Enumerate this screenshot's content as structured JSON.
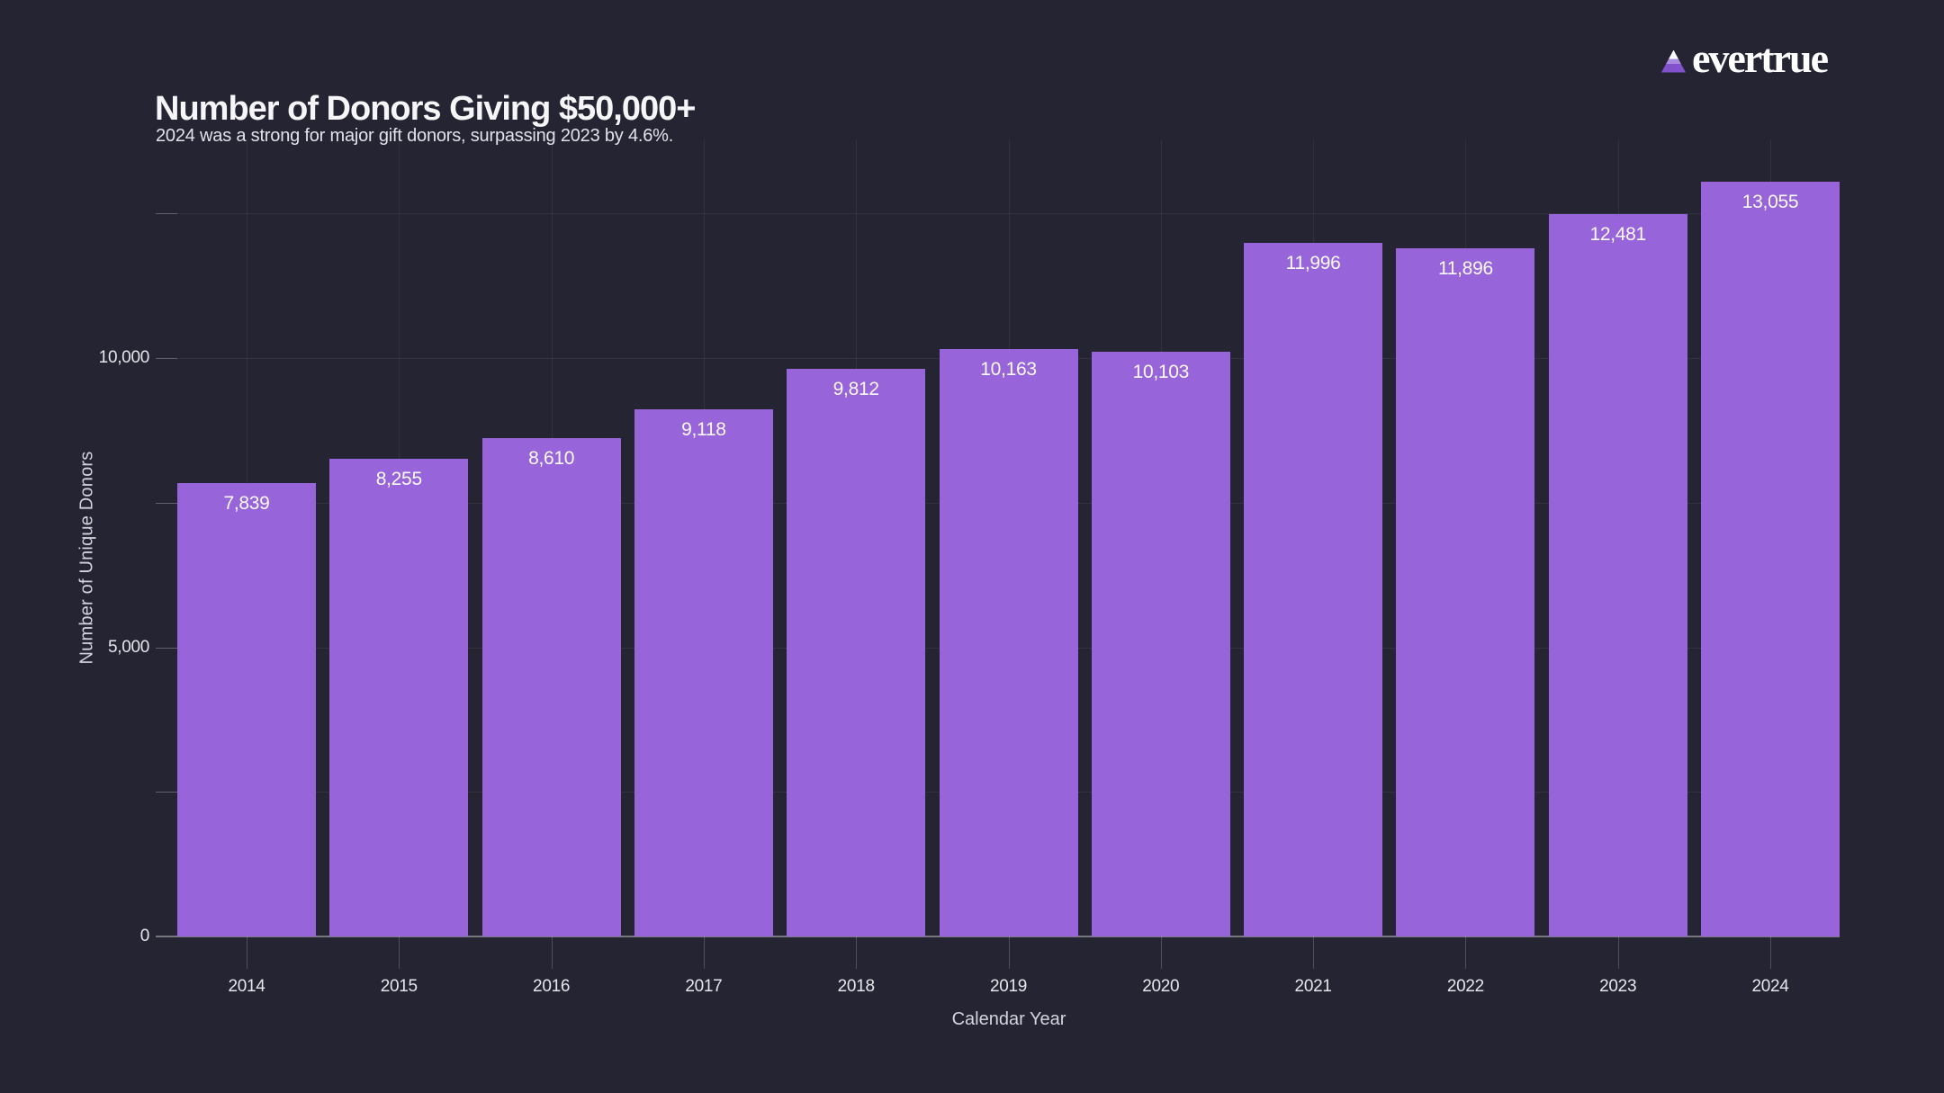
{
  "header": {
    "title": "Number of Donors Giving $50,000+",
    "subtitle": "2024 was a strong for major gift donors, surpassing 2023 by 4.6%."
  },
  "logo": {
    "text": "evertrue",
    "icon": "mountain-triangle-icon",
    "colors": {
      "snow_cap": "#ffffff",
      "mid_band": "#a98ae0",
      "base": "#8152cb"
    }
  },
  "chart_data": {
    "type": "bar",
    "title": "Number of Donors Giving $50,000+",
    "subtitle": "2024 was a strong for major gift donors, surpassing 2023 by 4.6%.",
    "categories": [
      "2014",
      "2015",
      "2016",
      "2017",
      "2018",
      "2019",
      "2020",
      "2021",
      "2022",
      "2023",
      "2024"
    ],
    "values": [
      7839,
      8255,
      8610,
      9118,
      9812,
      10163,
      10103,
      11996,
      11896,
      12481,
      13055
    ],
    "value_labels": [
      "7,839",
      "8,255",
      "8,610",
      "9,118",
      "9,812",
      "10,163",
      "10,103",
      "11,996",
      "11,896",
      "12,481",
      "13,055"
    ],
    "xlabel": "Calendar Year",
    "ylabel": "Number of Unique Donors",
    "ylim": [
      0,
      13780
    ],
    "yticks_labeled": [
      {
        "value": 0,
        "label": "0"
      },
      {
        "value": 5000,
        "label": "5,000"
      },
      {
        "value": 10000,
        "label": "10,000"
      }
    ],
    "yticks_minor": [
      2500,
      7500,
      12500
    ],
    "gridline_values": [
      2500,
      5000,
      7500,
      10000,
      12500
    ],
    "grid": true,
    "legend": "none",
    "bar_color": "#9765d9",
    "background_color": "#242432",
    "value_label_color": "#fafafc"
  }
}
